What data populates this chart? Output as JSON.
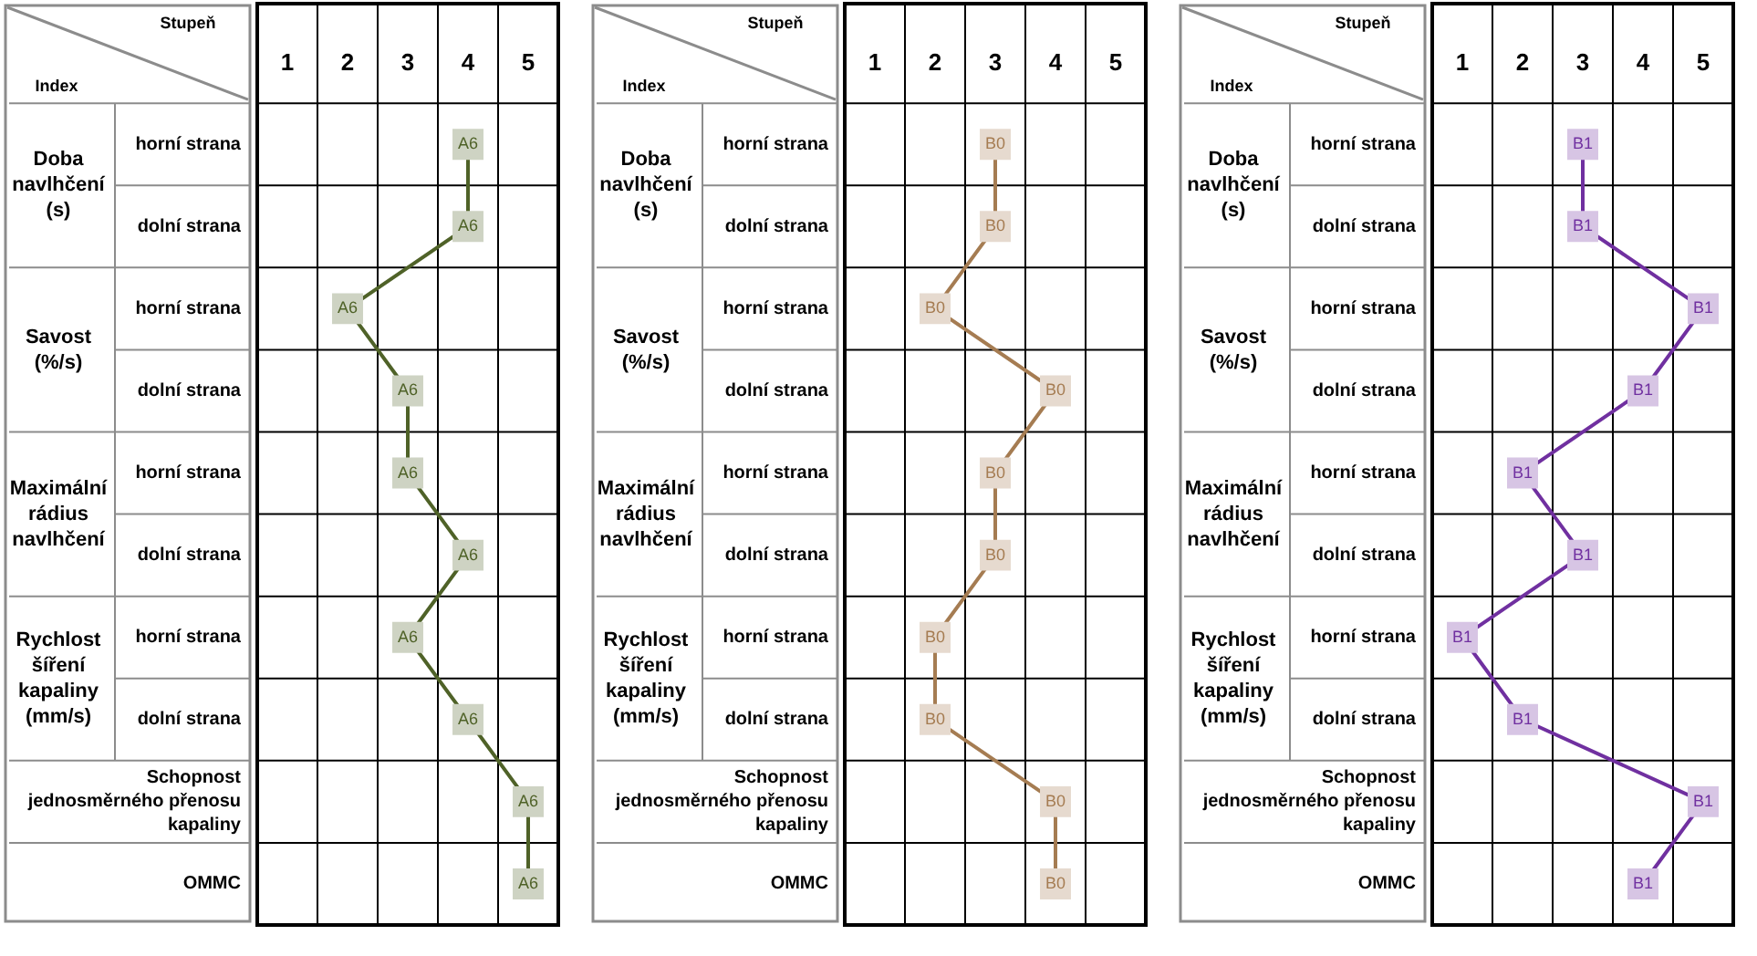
{
  "chart_data": [
    {
      "type": "line",
      "orientation": "horizontal",
      "xlabel": "Stupeň",
      "ylabel": "Index",
      "categories": [
        "horní strana",
        "dolní strana",
        "horní strana",
        "dolní strana",
        "horní strana",
        "dolní strana",
        "horní strana",
        "dolní strana",
        "Schopnost jednosměrného přenosu kapaliny",
        "OMMC"
      ],
      "annotations": [
        "Doba navlhčení (s)",
        "Savost (%/s)",
        "Maximální rádius navlhčení",
        "Rychlost šíření kapaliny (mm/s)"
      ],
      "xlim": [
        0.5,
        5.5
      ],
      "xticks": [
        1,
        2,
        3,
        4,
        5
      ],
      "grid": true,
      "marker": "square",
      "series": [
        {
          "name": "A6",
          "color": "#4f6228",
          "values": [
            4,
            4,
            2,
            3,
            3,
            4,
            3,
            4,
            5,
            5
          ]
        }
      ]
    },
    {
      "type": "line",
      "orientation": "horizontal",
      "xlabel": "Stupeň",
      "ylabel": "Index",
      "categories": [
        "horní strana",
        "dolní strana",
        "horní strana",
        "dolní strana",
        "horní strana",
        "dolní strana",
        "horní strana",
        "dolní strana",
        "Schopnost jednosměrného přenosu kapaliny",
        "OMMC"
      ],
      "annotations": [
        "Doba navlhčení (s)",
        "Savost (%/s)",
        "Maximální rádius navlhčení",
        "Rychlost šíření kapaliny (mm/s)"
      ],
      "xlim": [
        0.5,
        5.5
      ],
      "xticks": [
        1,
        2,
        3,
        4,
        5
      ],
      "grid": true,
      "marker": "square",
      "series": [
        {
          "name": "B0",
          "color": "#a57c52",
          "values": [
            3,
            3,
            2,
            4,
            3,
            3,
            2,
            2,
            4,
            4
          ]
        }
      ]
    },
    {
      "type": "line",
      "orientation": "horizontal",
      "xlabel": "Stupeň",
      "ylabel": "Index",
      "categories": [
        "horní strana",
        "dolní strana",
        "horní strana",
        "dolní strana",
        "horní strana",
        "dolní strana",
        "horní strana",
        "dolní strana",
        "Schopnost jednosměrného přenosu kapaliny",
        "OMMC"
      ],
      "annotations": [
        "Doba navlhčení (s)",
        "Savost (%/s)",
        "Maximální rádius navlhčení",
        "Rychlost šíření kapaliny (mm/s)"
      ],
      "xlim": [
        0.5,
        5.5
      ],
      "xticks": [
        1,
        2,
        3,
        4,
        5
      ],
      "grid": true,
      "marker": "square",
      "series": [
        {
          "name": "B1",
          "color": "#7030a0",
          "values": [
            3,
            3,
            5,
            4,
            2,
            3,
            1,
            2,
            5,
            4
          ]
        }
      ]
    }
  ]
}
